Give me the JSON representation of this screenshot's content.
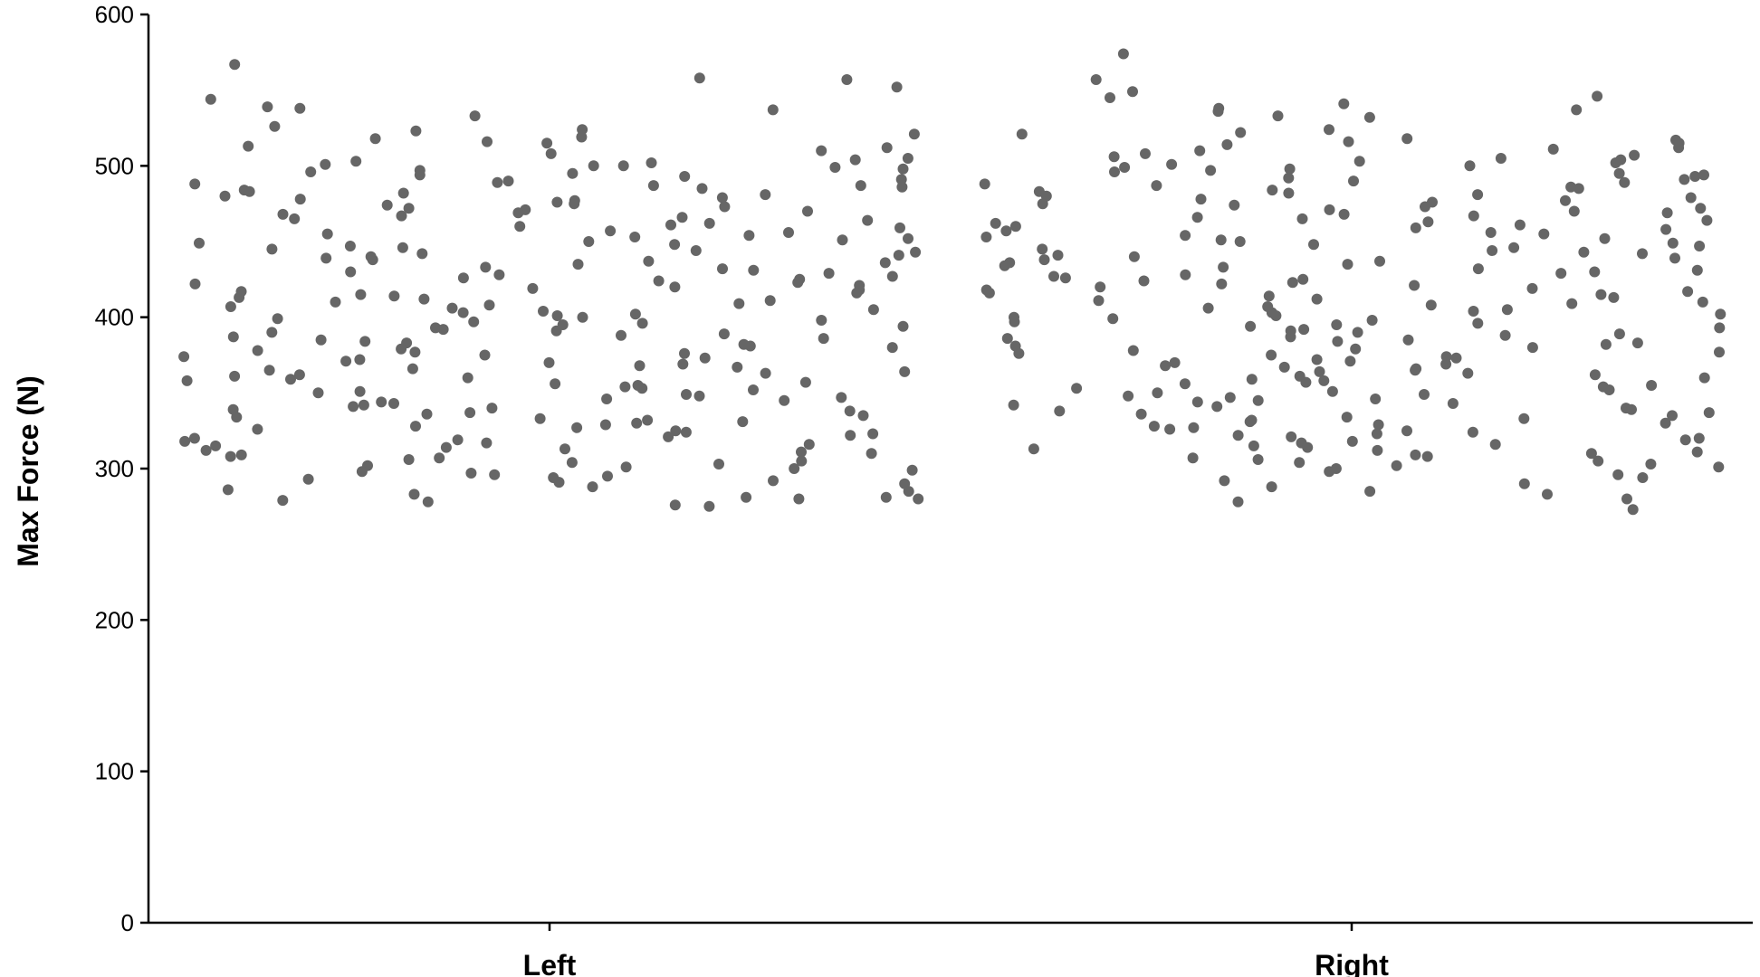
{
  "chart_data": {
    "type": "scatter",
    "title": "",
    "xlabel": "",
    "ylabel": "Max Force (N)",
    "categories": [
      "Left",
      "Right"
    ],
    "ylim": [
      0,
      600
    ],
    "yticks": [
      0,
      100,
      200,
      300,
      400,
      500,
      600
    ],
    "grid": false,
    "legend": "none",
    "point_color": "#666666",
    "series": [
      {
        "category": "Left",
        "values": [
          567,
          558,
          557,
          552,
          544,
          539,
          538,
          537,
          533,
          526,
          524,
          523,
          521,
          519,
          518,
          516,
          515,
          513,
          512,
          510,
          508,
          505,
          504,
          503,
          502,
          501,
          500,
          500,
          499,
          498,
          497,
          496,
          495,
          494,
          493,
          491,
          490,
          489,
          488,
          487,
          487,
          486,
          485,
          484,
          483,
          482,
          481,
          480,
          479,
          478,
          477,
          476,
          475,
          474,
          473,
          472,
          471,
          470,
          469,
          468,
          467,
          466,
          465,
          464,
          462,
          461,
          460,
          459,
          457,
          456,
          455,
          454,
          453,
          452,
          451,
          450,
          449,
          448,
          447,
          446,
          445,
          444,
          443,
          442,
          441,
          440,
          439,
          438,
          437,
          436,
          435,
          433,
          432,
          431,
          430,
          429,
          428,
          427,
          426,
          425,
          424,
          423,
          422,
          421,
          420,
          419,
          418,
          417,
          416,
          415,
          414,
          413,
          412,
          411,
          410,
          409,
          408,
          407,
          406,
          405,
          404,
          403,
          402,
          401,
          400,
          399,
          398,
          397,
          396,
          395,
          394,
          393,
          392,
          391,
          390,
          389,
          388,
          387,
          386,
          385,
          384,
          383,
          382,
          381,
          380,
          379,
          378,
          377,
          376,
          375,
          374,
          373,
          372,
          371,
          370,
          369,
          368,
          367,
          366,
          365,
          364,
          363,
          362,
          361,
          360,
          359,
          358,
          357,
          356,
          355,
          354,
          353,
          352,
          351,
          350,
          349,
          348,
          347,
          346,
          345,
          344,
          343,
          342,
          341,
          340,
          339,
          338,
          337,
          336,
          335,
          334,
          333,
          332,
          331,
          330,
          329,
          328,
          327,
          326,
          325,
          324,
          323,
          322,
          321,
          320,
          319,
          318,
          317,
          316,
          315,
          314,
          313,
          312,
          311,
          310,
          309,
          308,
          307,
          306,
          305,
          304,
          303,
          302,
          301,
          300,
          299,
          298,
          297,
          296,
          295,
          294,
          293,
          292,
          291,
          290,
          288,
          286,
          285,
          283,
          281,
          281,
          280,
          280,
          279,
          278,
          276,
          275
        ]
      },
      {
        "category": "Right",
        "values": [
          574,
          557,
          549,
          546,
          545,
          541,
          538,
          537,
          536,
          533,
          532,
          524,
          522,
          521,
          518,
          517,
          516,
          515,
          514,
          512,
          511,
          510,
          508,
          507,
          506,
          505,
          504,
          503,
          502,
          501,
          500,
          499,
          498,
          497,
          496,
          495,
          494,
          493,
          492,
          491,
          490,
          489,
          488,
          487,
          486,
          485,
          484,
          483,
          482,
          481,
          480,
          479,
          478,
          477,
          476,
          475,
          474,
          473,
          472,
          471,
          470,
          469,
          468,
          467,
          466,
          465,
          464,
          463,
          462,
          461,
          460,
          459,
          458,
          457,
          456,
          455,
          454,
          453,
          452,
          451,
          450,
          449,
          448,
          447,
          446,
          445,
          444,
          443,
          442,
          441,
          440,
          439,
          438,
          437,
          436,
          435,
          434,
          433,
          432,
          431,
          430,
          429,
          428,
          427,
          426,
          425,
          424,
          423,
          422,
          421,
          420,
          419,
          418,
          417,
          416,
          415,
          414,
          413,
          412,
          411,
          410,
          409,
          408,
          407,
          406,
          405,
          404,
          403,
          402,
          401,
          400,
          399,
          398,
          397,
          396,
          395,
          394,
          393,
          392,
          391,
          390,
          389,
          388,
          387,
          386,
          385,
          384,
          383,
          382,
          381,
          380,
          379,
          378,
          377,
          376,
          375,
          374,
          373,
          372,
          371,
          370,
          369,
          368,
          367,
          366,
          365,
          364,
          363,
          362,
          361,
          360,
          359,
          358,
          357,
          356,
          355,
          354,
          353,
          352,
          351,
          350,
          349,
          348,
          347,
          346,
          345,
          344,
          343,
          342,
          341,
          340,
          339,
          338,
          337,
          336,
          335,
          334,
          333,
          332,
          331,
          330,
          329,
          328,
          327,
          326,
          325,
          324,
          323,
          322,
          321,
          320,
          319,
          318,
          317,
          316,
          315,
          314,
          313,
          312,
          311,
          310,
          309,
          308,
          307,
          306,
          305,
          304,
          303,
          302,
          301,
          300,
          298,
          296,
          294,
          292,
          290,
          288,
          285,
          283,
          280,
          278,
          273
        ]
      }
    ]
  }
}
